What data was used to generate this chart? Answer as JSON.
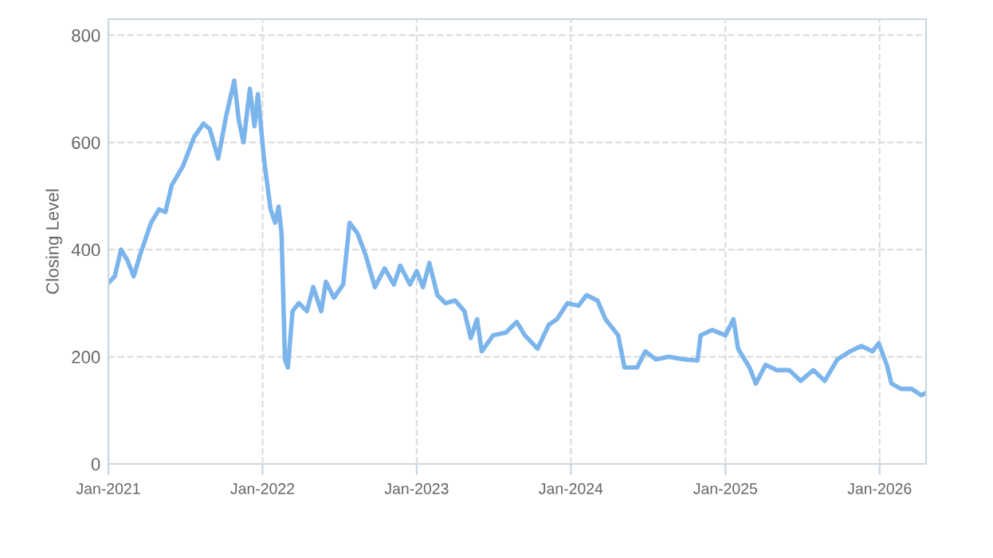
{
  "chart_data": {
    "type": "line",
    "ylabel": "Closing Level",
    "x": [
      "2021-01-01",
      "2021-01-16",
      "2021-01-31",
      "2021-02-15",
      "2021-03-02",
      "2021-03-17",
      "2021-04-12",
      "2021-05-01",
      "2021-05-16",
      "2021-05-31",
      "2021-06-26",
      "2021-07-23",
      "2021-08-14",
      "2021-08-29",
      "2021-09-18",
      "2021-10-07",
      "2021-10-26",
      "2021-11-06",
      "2021-11-17",
      "2021-12-02",
      "2021-12-13",
      "2021-12-21",
      "2022-01-05",
      "2022-01-20",
      "2022-01-31",
      "2022-02-08",
      "2022-02-15",
      "2022-02-23",
      "2022-03-02",
      "2022-03-13",
      "2022-03-28",
      "2022-04-16",
      "2022-05-01",
      "2022-05-20",
      "2022-05-31",
      "2022-06-19",
      "2022-07-11",
      "2022-07-26",
      "2022-08-14",
      "2022-09-02",
      "2022-09-24",
      "2022-10-17",
      "2022-11-08",
      "2022-11-23",
      "2022-12-16",
      "2023-01-01",
      "2023-01-16",
      "2023-01-31",
      "2023-02-19",
      "2023-03-10",
      "2023-04-02",
      "2023-04-24",
      "2023-05-09",
      "2023-05-24",
      "2023-06-04",
      "2023-07-01",
      "2023-07-31",
      "2023-08-26",
      "2023-09-14",
      "2023-10-14",
      "2023-11-10",
      "2023-11-29",
      "2023-12-24",
      "2024-01-19",
      "2024-02-07",
      "2024-03-04",
      "2024-03-23",
      "2024-04-22",
      "2024-05-07",
      "2024-06-06",
      "2024-06-25",
      "2024-07-21",
      "2024-08-20",
      "2024-09-27",
      "2024-10-27",
      "2024-11-03",
      "2024-11-30",
      "2025-01-01",
      "2025-01-20",
      "2025-01-31",
      "2025-02-27",
      "2025-03-14",
      "2025-04-06",
      "2025-05-02",
      "2025-06-01",
      "2025-06-28",
      "2025-07-28",
      "2025-08-24",
      "2025-09-23",
      "2025-10-23",
      "2025-11-19",
      "2025-12-15",
      "2025-12-30",
      "2026-01-18",
      "2026-01-29",
      "2026-02-21",
      "2026-03-18",
      "2026-04-10",
      "2026-04-21"
    ],
    "series": [
      {
        "color": "#7cb5ec",
        "values": [
          338,
          350,
          400,
          380,
          350,
          390,
          450,
          475,
          470,
          520,
          555,
          610,
          635,
          625,
          570,
          650,
          715,
          640,
          600,
          700,
          630,
          690,
          565,
          475,
          450,
          480,
          430,
          195,
          180,
          285,
          300,
          285,
          330,
          285,
          340,
          310,
          335,
          450,
          430,
          390,
          330,
          365,
          335,
          370,
          335,
          360,
          330,
          375,
          315,
          300,
          305,
          285,
          235,
          270,
          210,
          240,
          245,
          265,
          240,
          215,
          260,
          270,
          300,
          295,
          315,
          305,
          270,
          240,
          180,
          180,
          210,
          195,
          200,
          195,
          193,
          240,
          250,
          240,
          270,
          215,
          180,
          150,
          185,
          175,
          175,
          155,
          175,
          155,
          195,
          210,
          220,
          210,
          225,
          185,
          150,
          140,
          140,
          128,
          133
        ]
      }
    ],
    "xlim": [
      "2021-01-01",
      "2026-04-21"
    ],
    "xticks": [
      {
        "value": "2021-01-01",
        "label": "Jan-2021"
      },
      {
        "value": "2022-01-01",
        "label": "Jan-2022"
      },
      {
        "value": "2023-01-01",
        "label": "Jan-2023"
      },
      {
        "value": "2024-01-01",
        "label": "Jan-2024"
      },
      {
        "value": "2025-01-01",
        "label": "Jan-2025"
      },
      {
        "value": "2026-01-01",
        "label": "Jan-2026"
      }
    ],
    "ylim": [
      0,
      830
    ],
    "yticks": [
      0,
      200,
      400,
      600,
      800
    ],
    "grid": true,
    "line_style": "solid"
  }
}
